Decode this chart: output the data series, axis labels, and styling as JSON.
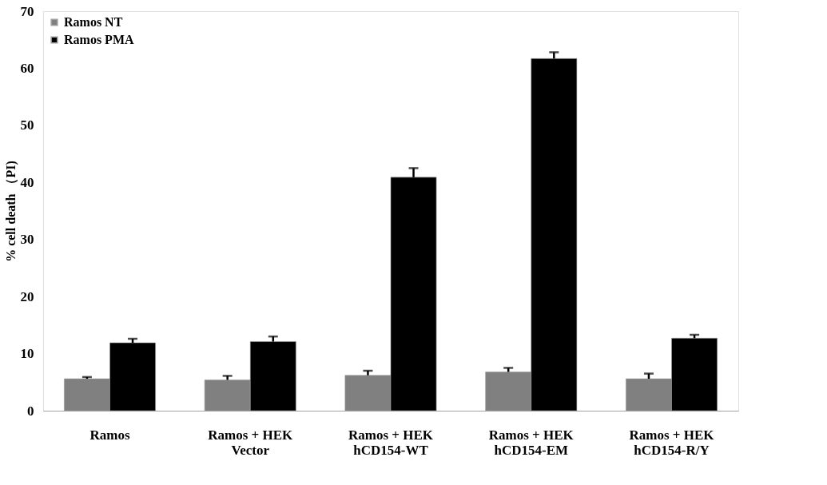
{
  "chart_data": {
    "type": "bar",
    "ylabel": "% cell death （PI)",
    "categories": [
      "Ramos",
      "Ramos + HEK\nVector",
      "Ramos + HEK\nhCD154-WT",
      "Ramos + HEK\nhCD154-EM",
      "Ramos + HEK\nhCD154-R/Y"
    ],
    "series": [
      {
        "name": "Ramos NT",
        "color": "#808080",
        "values": [
          5.6,
          5.4,
          6.2,
          6.8,
          5.6
        ],
        "errors": [
          [
            5.6,
            5.9
          ],
          [
            5.4,
            6.1
          ],
          [
            6.2,
            7.0
          ],
          [
            6.8,
            7.5
          ],
          [
            5.6,
            6.5
          ]
        ]
      },
      {
        "name": "Ramos PMA",
        "color": "#000000",
        "values": [
          11.9,
          12.1,
          40.9,
          61.7,
          12.7
        ],
        "errors": [
          [
            11.9,
            12.6
          ],
          [
            12.1,
            13.0
          ],
          [
            40.9,
            42.5
          ],
          [
            61.7,
            62.8
          ],
          [
            12.7,
            13.3
          ]
        ]
      }
    ],
    "ylim": [
      0,
      70
    ],
    "yticks": [
      0,
      10,
      20,
      30,
      40,
      50,
      60,
      70
    ],
    "grid": false,
    "legend": "top left"
  }
}
